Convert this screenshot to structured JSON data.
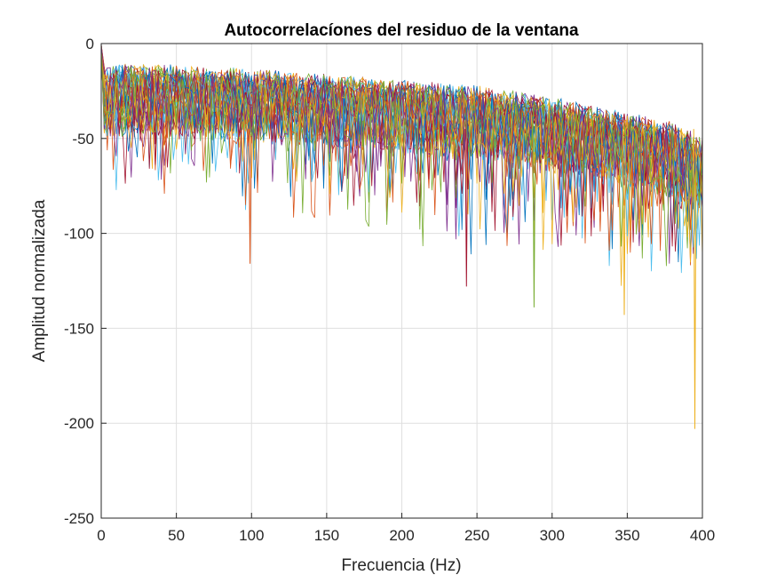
{
  "chart_data": {
    "type": "line",
    "title": "Autocorrelacíones del residuo de la ventana",
    "xlabel": "Frecuencia (Hz)",
    "ylabel": "Amplitud normalizada",
    "xlim": [
      0,
      400
    ],
    "ylim": [
      -250,
      0
    ],
    "xticks": [
      "0",
      "50",
      "100",
      "150",
      "200",
      "250",
      "300",
      "350",
      "400"
    ],
    "yticks": [
      "0",
      "-50",
      "-100",
      "-150",
      "-200",
      "-250"
    ],
    "xtick_values": [
      0,
      50,
      100,
      150,
      200,
      250,
      300,
      350,
      400
    ],
    "ytick_values": [
      0,
      -50,
      -100,
      -150,
      -200,
      -250
    ],
    "grid": true,
    "series_count": 40,
    "frequency_step_hz": 2,
    "envelope": {
      "x": [
        0,
        1,
        20,
        50,
        100,
        150,
        200,
        250,
        300,
        350,
        380,
        400
      ],
      "upper": [
        0,
        -8,
        -6,
        -7,
        -9,
        -12,
        -15,
        -18,
        -24,
        -32,
        -37,
        -45
      ],
      "typical_spread": 35
    },
    "notable_points": [
      {
        "x": 395,
        "y": -203
      },
      {
        "x": 348,
        "y": -143
      },
      {
        "x": 288,
        "y": -139
      },
      {
        "x": 243,
        "y": -128
      },
      {
        "x": 99,
        "y": -116
      }
    ],
    "colors": [
      "#0072BD",
      "#D95319",
      "#EDB120",
      "#7E2F8E",
      "#77AC30",
      "#4DBEEE",
      "#A2142F"
    ]
  }
}
